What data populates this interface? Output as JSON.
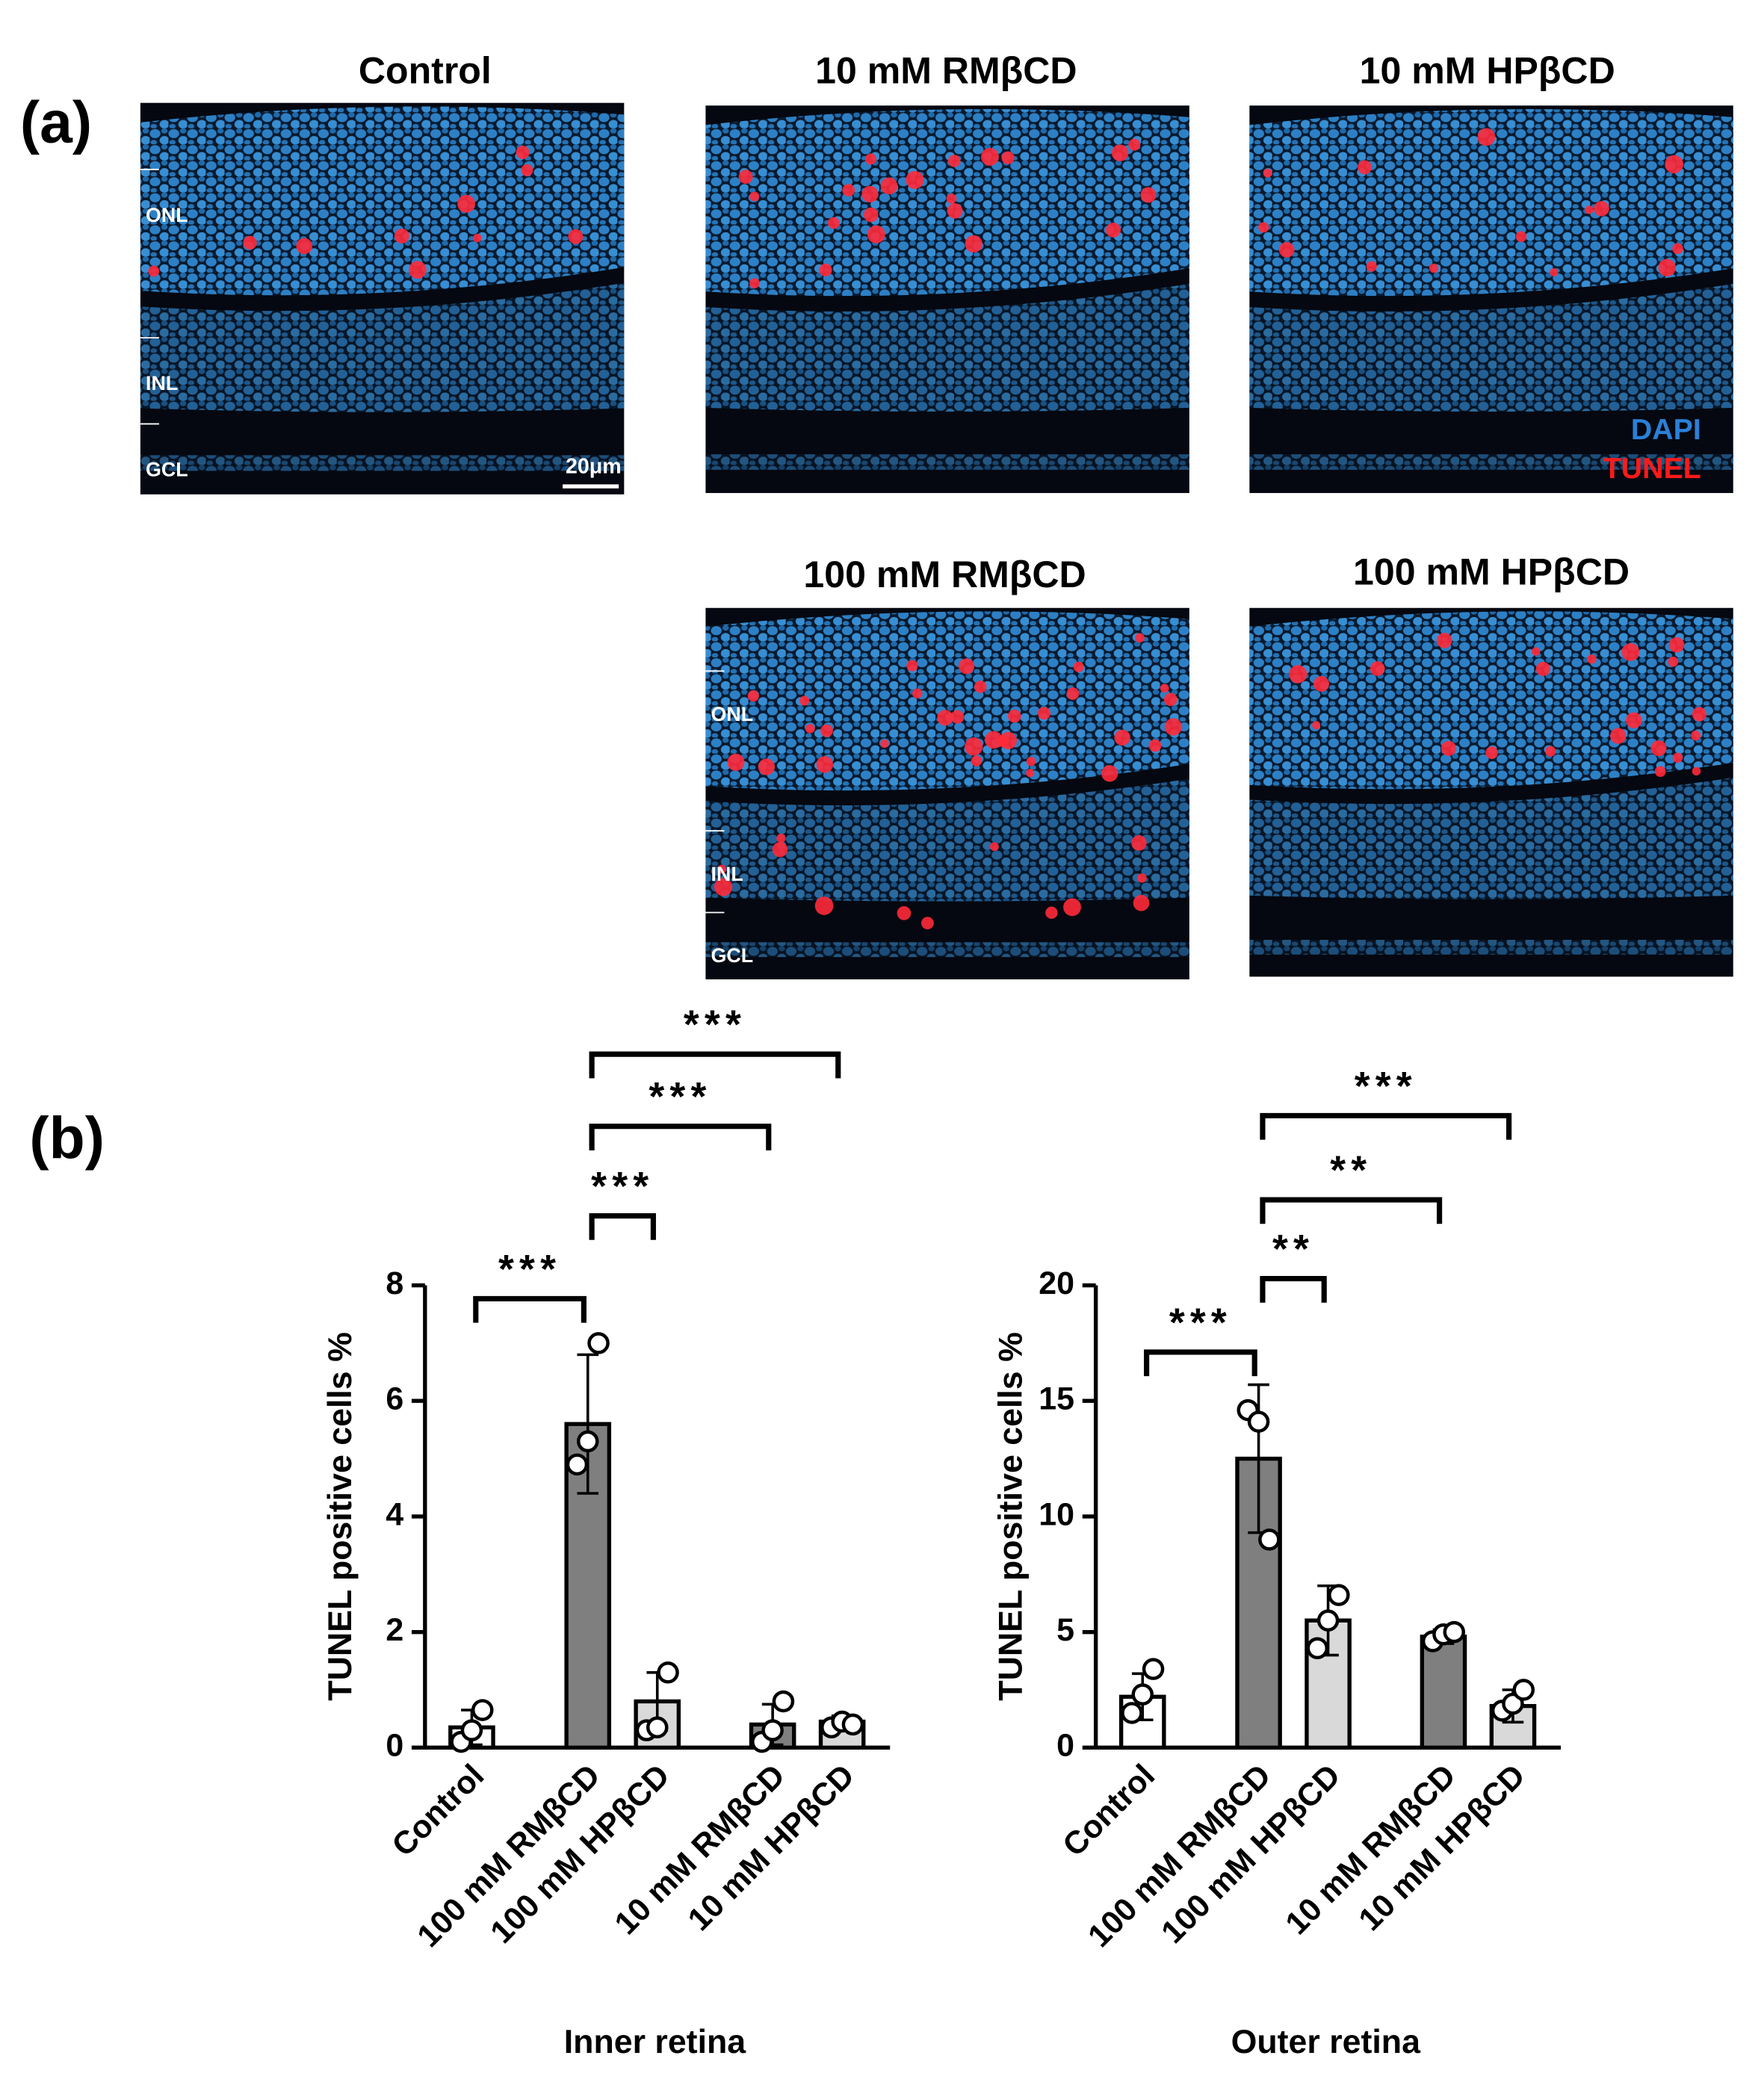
{
  "figure": {
    "panel_a_label": "(a)",
    "panel_b_label": "(b)",
    "images": [
      {
        "title": "Control",
        "layers": [
          "ONL",
          "INL",
          "GCL"
        ],
        "scale_bar": "20μm"
      },
      {
        "title": "10 mM RMβCD"
      },
      {
        "title": "10 mM HPβCD",
        "legend": [
          "DAPI",
          "TUNEL"
        ]
      },
      {
        "title": "100 mM RMβCD",
        "layers": [
          "ONL",
          "INL",
          "GCL"
        ]
      },
      {
        "title": "100 mM HPβCD"
      }
    ]
  },
  "chart_data": [
    {
      "type": "bar",
      "x_label": "Inner retina",
      "y_label": "TUNEL positive cells %",
      "categories": [
        "Control",
        "100 mM RMβCD",
        "100 mM HPβCD",
        "10 mM RMβCD",
        "10 mM HPβCD"
      ],
      "values": [
        0.35,
        5.6,
        0.8,
        0.4,
        0.45
      ],
      "errors": [
        0.3,
        1.2,
        0.5,
        0.35,
        0.1
      ],
      "points": [
        [
          0.1,
          0.3,
          0.65
        ],
        [
          4.9,
          5.3,
          7.0
        ],
        [
          0.3,
          0.35,
          1.3
        ],
        [
          0.1,
          0.3,
          0.8
        ],
        [
          0.35,
          0.45,
          0.4
        ]
      ],
      "colors": [
        "#ffffff",
        "#7f7f7f",
        "#d9d9d9",
        "#7f7f7f",
        "#d9d9d9"
      ],
      "ylim": [
        0,
        8
      ],
      "yticks": [
        0,
        2,
        4,
        6,
        8
      ],
      "significance": [
        {
          "from": 0,
          "to": 1,
          "label": "***"
        },
        {
          "from": 1,
          "to": 2,
          "label": "***"
        },
        {
          "from": 1,
          "to": 3,
          "label": "***"
        },
        {
          "from": 1,
          "to": 4,
          "label": "***"
        }
      ]
    },
    {
      "type": "bar",
      "x_label": "Outer retina",
      "y_label": "TUNEL positive cells %",
      "categories": [
        "Control",
        "100 mM RMβCD",
        "100 mM HPβCD",
        "10 mM RMβCD",
        "10 mM HPβCD"
      ],
      "values": [
        2.2,
        12.5,
        5.5,
        4.8,
        1.8
      ],
      "errors": [
        1.0,
        3.2,
        1.5,
        0.3,
        0.7
      ],
      "points": [
        [
          1.5,
          2.3,
          3.4
        ],
        [
          14.6,
          14.1,
          9.0
        ],
        [
          4.3,
          5.5,
          6.6
        ],
        [
          4.6,
          4.9,
          5.0
        ],
        [
          1.6,
          1.9,
          2.5
        ]
      ],
      "colors": [
        "#ffffff",
        "#7f7f7f",
        "#d9d9d9",
        "#7f7f7f",
        "#d9d9d9"
      ],
      "ylim": [
        0,
        20
      ],
      "yticks": [
        0,
        5,
        10,
        15,
        20
      ],
      "significance": [
        {
          "from": 0,
          "to": 1,
          "label": "***"
        },
        {
          "from": 1,
          "to": 2,
          "label": "**"
        },
        {
          "from": 1,
          "to": 3,
          "label": "**"
        },
        {
          "from": 1,
          "to": 4,
          "label": "***"
        }
      ]
    }
  ]
}
